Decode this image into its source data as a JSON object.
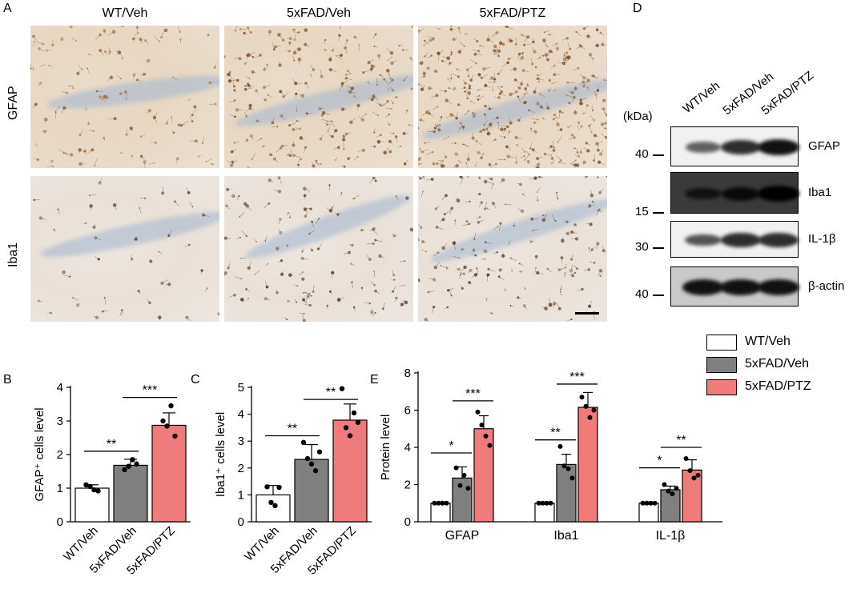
{
  "panels": {
    "A": "A",
    "B": "B",
    "C": "C",
    "D": "D",
    "E": "E"
  },
  "micrograph": {
    "columns": [
      "WT/Veh",
      "5xFAD/Veh",
      "5xFAD/PTZ"
    ],
    "rows": [
      "GFAP",
      "Iba1"
    ]
  },
  "western": {
    "kda_label": "(kDa)",
    "lanes": [
      "WT/Veh",
      "5xFAD/Veh",
      "5xFAD/PTZ"
    ],
    "blots": [
      {
        "label": "GFAP",
        "kda": "40",
        "intensity": [
          0.45,
          0.8,
          1.0
        ]
      },
      {
        "label": "Iba1",
        "kda": "15",
        "intensity": [
          0.55,
          0.75,
          1.0
        ]
      },
      {
        "label": "IL-1β",
        "kda": "30",
        "intensity": [
          0.55,
          0.8,
          0.8
        ]
      },
      {
        "label": "β-actin",
        "kda": "40",
        "intensity": [
          1.0,
          1.0,
          1.0
        ]
      }
    ]
  },
  "legend": [
    {
      "label": "WT/Veh",
      "color": "#ffffff"
    },
    {
      "label": "5xFAD/Veh",
      "color": "#808080"
    },
    {
      "label": "5xFAD/PTZ",
      "color": "#f07b7b"
    }
  ],
  "chart_data": [
    {
      "type": "bar",
      "panel": "B",
      "categories": [
        "WT/Veh",
        "5xFAD/Veh",
        "5xFAD/PTZ"
      ],
      "values": [
        1.0,
        1.68,
        2.87
      ],
      "errors": [
        0.1,
        0.18,
        0.37
      ],
      "points": [
        [
          1.1,
          1.05,
          0.95,
          0.92
        ],
        [
          1.55,
          1.65,
          1.85,
          1.72
        ],
        [
          3.0,
          2.85,
          3.45,
          2.55
        ]
      ],
      "colors": [
        "#ffffff",
        "#808080",
        "#f07b7b"
      ],
      "ylabel": "GFAP⁺ cells level",
      "ylim": [
        0,
        4
      ],
      "yticks": [
        "0",
        "1",
        "2",
        "3",
        "4"
      ],
      "significance": [
        {
          "from": 0,
          "to": 1,
          "label": "**",
          "y": 2.1
        },
        {
          "from": 1,
          "to": 2,
          "label": "***",
          "y": 3.7
        }
      ]
    },
    {
      "type": "bar",
      "panel": "C",
      "categories": [
        "WT/Veh",
        "5xFAD/Veh",
        "5xFAD/PTZ"
      ],
      "values": [
        1.0,
        2.32,
        3.78
      ],
      "errors": [
        0.35,
        0.55,
        0.6
      ],
      "points": [
        [
          1.3,
          0.72,
          0.6,
          1.28
        ],
        [
          2.95,
          2.35,
          2.15,
          1.9,
          2.6
        ],
        [
          4.95,
          3.5,
          3.2,
          4.05,
          3.7
        ]
      ],
      "colors": [
        "#ffffff",
        "#808080",
        "#f07b7b"
      ],
      "ylabel": "Iba1⁺ cells level",
      "ylim": [
        0,
        5
      ],
      "yticks": [
        "0",
        "1",
        "2",
        "3",
        "4",
        "5"
      ],
      "significance": [
        {
          "from": 0,
          "to": 1,
          "label": "**",
          "y": 3.2
        },
        {
          "from": 1,
          "to": 2,
          "label": "**",
          "y": 4.55
        }
      ]
    },
    {
      "type": "bar",
      "panel": "E",
      "categories": [
        "GFAP",
        "Iba1",
        "IL-1β"
      ],
      "series": [
        {
          "name": "WT/Veh",
          "values": [
            1.0,
            1.0,
            1.0
          ],
          "errors": [
            0,
            0,
            0
          ],
          "color": "#ffffff"
        },
        {
          "name": "5xFAD/Veh",
          "values": [
            2.35,
            3.08,
            1.72
          ],
          "errors": [
            0.6,
            0.55,
            0.2
          ],
          "color": "#808080"
        },
        {
          "name": "5xFAD/PTZ",
          "values": [
            5.0,
            6.15,
            2.78
          ],
          "errors": [
            0.7,
            0.8,
            0.55
          ],
          "color": "#f07b7b"
        }
      ],
      "points": [
        [
          [
            1,
            1,
            1,
            1
          ],
          [
            2.9,
            1.95,
            2.5,
            1.8
          ],
          [
            5.9,
            5.2,
            4.6,
            4.1
          ]
        ],
        [
          [
            1,
            1,
            1,
            1
          ],
          [
            4.05,
            3.0,
            2.85,
            2.35
          ],
          [
            6.7,
            6.2,
            5.6,
            6.0
          ]
        ],
        [
          [
            1,
            1,
            1,
            1
          ],
          [
            2.0,
            1.65,
            1.5,
            1.8
          ],
          [
            3.4,
            2.75,
            2.35,
            2.5
          ]
        ]
      ],
      "ylabel": "Protein level",
      "ylim": [
        0,
        8
      ],
      "yticks": [
        "0",
        "2",
        "4",
        "6",
        "8"
      ],
      "significance": [
        {
          "group": 0,
          "from": 0,
          "to": 1,
          "label": "*",
          "y": 3.7
        },
        {
          "group": 0,
          "from": 1,
          "to": 2,
          "label": "***",
          "y": 6.5
        },
        {
          "group": 1,
          "from": 0,
          "to": 1,
          "label": "**",
          "y": 4.4
        },
        {
          "group": 1,
          "from": 1,
          "to": 2,
          "label": "***",
          "y": 7.4
        },
        {
          "group": 2,
          "from": 0,
          "to": 1,
          "label": "*",
          "y": 2.9
        },
        {
          "group": 2,
          "from": 1,
          "to": 2,
          "label": "**",
          "y": 4.0
        }
      ]
    }
  ]
}
